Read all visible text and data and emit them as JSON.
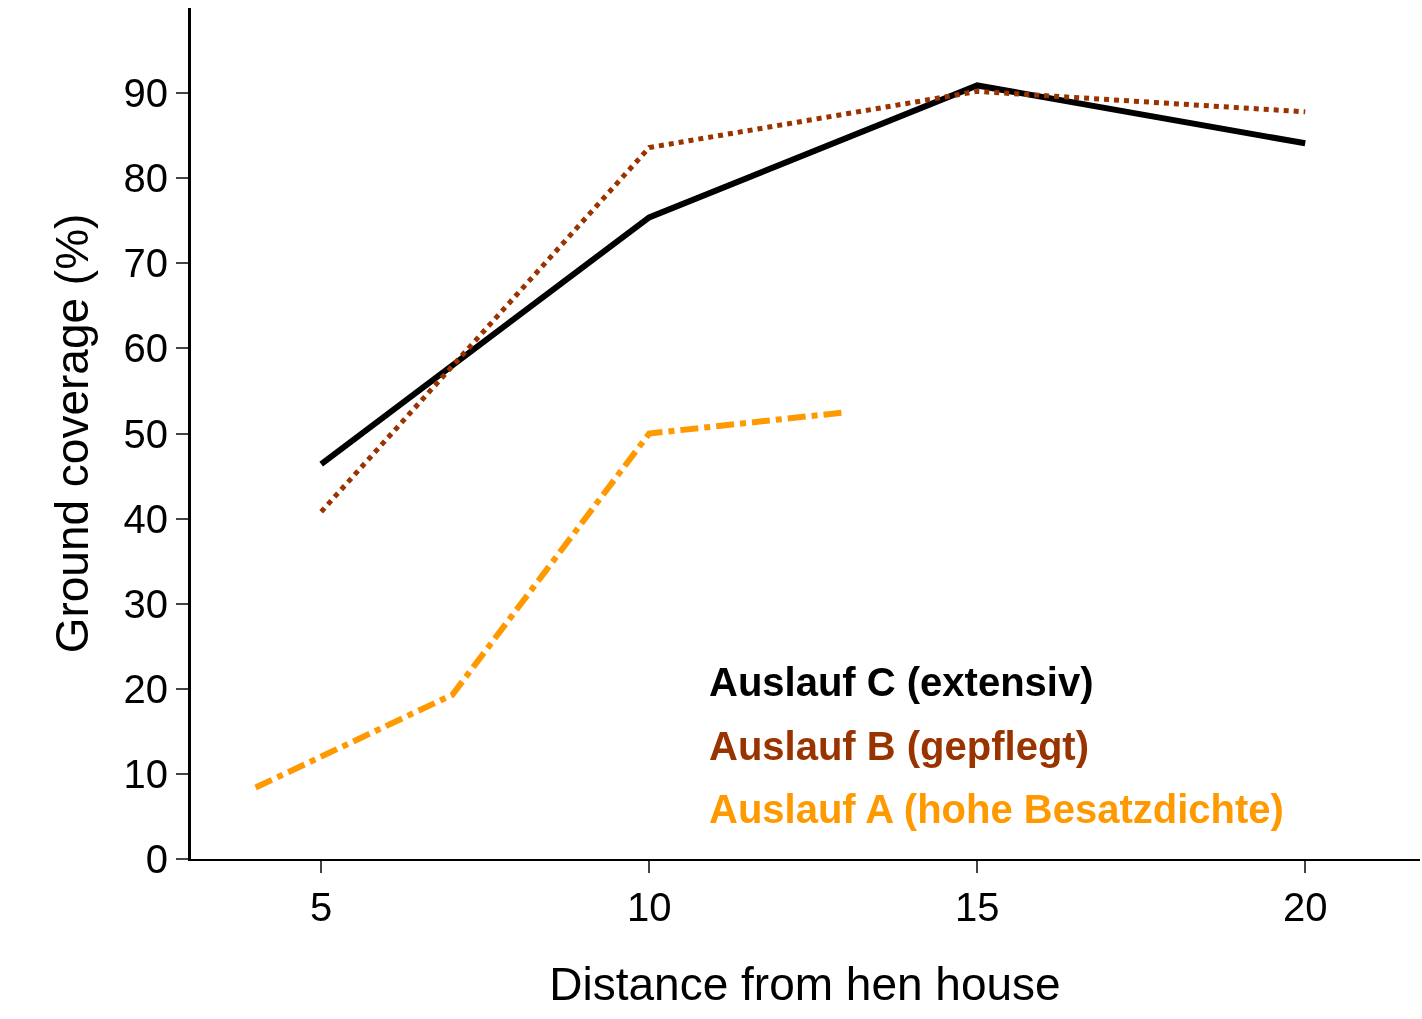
{
  "chart_data": {
    "type": "line",
    "xlabel": "Distance from hen house",
    "ylabel": "Ground coverage (%)",
    "xlim": [
      3,
      21.75
    ],
    "xticks": [
      5,
      10,
      15,
      20
    ],
    "ylim": [
      0,
      100
    ],
    "yticks": [
      0,
      10,
      20,
      30,
      40,
      50,
      60,
      70,
      80,
      90
    ],
    "legend": "bottom right",
    "marker": "none",
    "series": [
      {
        "name": "Auslauf C (extensiv)",
        "color": "#000000",
        "line_style": "solid",
        "x": [
          5,
          10,
          15,
          20
        ],
        "values": [
          46.4,
          75.4,
          90.9,
          84.1
        ]
      },
      {
        "name": "Auslauf B (gepflegt)",
        "color": "#993300",
        "line_style": "dotted",
        "x": [
          5,
          10,
          15,
          20
        ],
        "values": [
          40.8,
          83.6,
          90.2,
          87.8
        ]
      },
      {
        "name": "Auslauf A (hohe Besatzdichte)",
        "color": "#ff9900",
        "line_style": "dashdot",
        "x": [
          4,
          7,
          10,
          13
        ],
        "values": [
          8.4,
          19.3,
          50,
          52.5
        ]
      }
    ]
  }
}
